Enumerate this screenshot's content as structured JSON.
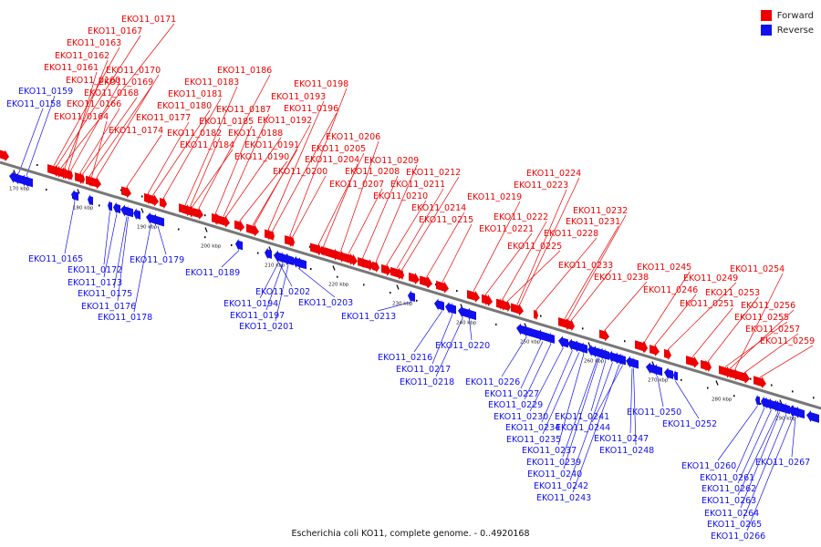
{
  "caption": "Escherichia coli KO11, complete genome. - 0..4920168",
  "colors": {
    "forward": "#ee0000",
    "reverse": "#1010ee",
    "backbone": "#777777",
    "tick": "#000000",
    "leader": "#999999"
  },
  "legend": {
    "items": [
      {
        "label": "Forward",
        "color": "#ee0000"
      },
      {
        "label": "Reverse",
        "color": "#1010ee"
      }
    ]
  },
  "scale": {
    "unit": "kbp",
    "ticks": [
      "170 kbp",
      "180 kbp",
      "190 kbp",
      "200 kbp",
      "210 kbp",
      "220 kbp",
      "230 kbp",
      "240 kbp",
      "250 kbp",
      "260 kbp",
      "270 kbp",
      "280 kbp",
      "290 kbp"
    ]
  },
  "genes": {
    "forward": [
      "EKO11_0171",
      "EKO11_0167",
      "EKO11_0163",
      "EKO11_0162",
      "EKO11_0161",
      "EKO11_0160",
      "EKO11_0170",
      "EKO11_0169",
      "EKO11_0168",
      "EKO11_0166",
      "EKO11_0164",
      "EKO11_0174",
      "EKO11_0177",
      "EKO11_0180",
      "EKO11_0181",
      "EKO11_0183",
      "EKO11_0186",
      "EKO11_0187",
      "EKO11_0185",
      "EKO11_0182",
      "EKO11_0184",
      "EKO11_0188",
      "EKO11_0190",
      "EKO11_0191",
      "EKO11_0192",
      "EKO11_0193",
      "EKO11_0196",
      "EKO11_0198",
      "EKO11_0200",
      "EKO11_0204",
      "EKO11_0205",
      "EKO11_0206",
      "EKO11_0207",
      "EKO11_0208",
      "EKO11_0209",
      "EKO11_0210",
      "EKO11_0211",
      "EKO11_0212",
      "EKO11_0214",
      "EKO11_0215",
      "EKO11_0219",
      "EKO11_0221",
      "EKO11_0222",
      "EKO11_0223",
      "EKO11_0224",
      "EKO11_0225",
      "EKO11_0228",
      "EKO11_0231",
      "EKO11_0232",
      "EKO11_0233",
      "EKO11_0238",
      "EKO11_0245",
      "EKO11_0246",
      "EKO11_0249",
      "EKO11_0251",
      "EKO11_0253",
      "EKO11_0254",
      "EKO11_0255",
      "EKO11_0256",
      "EKO11_0257",
      "EKO11_0259"
    ],
    "reverse": [
      "EKO11_0159",
      "EKO11_0158",
      "EKO11_0165",
      "EKO11_0172",
      "EKO11_0173",
      "EKO11_0175",
      "EKO11_0176",
      "EKO11_0178",
      "EKO11_0179",
      "EKO11_0189",
      "EKO11_0194",
      "EKO11_0197",
      "EKO11_0201",
      "EKO11_0202",
      "EKO11_0203",
      "EKO11_0213",
      "EKO11_0216",
      "EKO11_0217",
      "EKO11_0218",
      "EKO11_0220",
      "EKO11_0226",
      "EKO11_0227",
      "EKO11_0229",
      "EKO11_0230",
      "EKO11_0234",
      "EKO11_0235",
      "EKO11_0237",
      "EKO11_0239",
      "EKO11_0240",
      "EKO11_0241",
      "EKO11_0242",
      "EKO11_0243",
      "EKO11_0244",
      "EKO11_0247",
      "EKO11_0248",
      "EKO11_0250",
      "EKO11_0252",
      "EKO11_0260",
      "EKO11_0261",
      "EKO11_0262",
      "EKO11_0263",
      "EKO11_0264",
      "EKO11_0265",
      "EKO11_0266",
      "EKO11_0267"
    ]
  }
}
